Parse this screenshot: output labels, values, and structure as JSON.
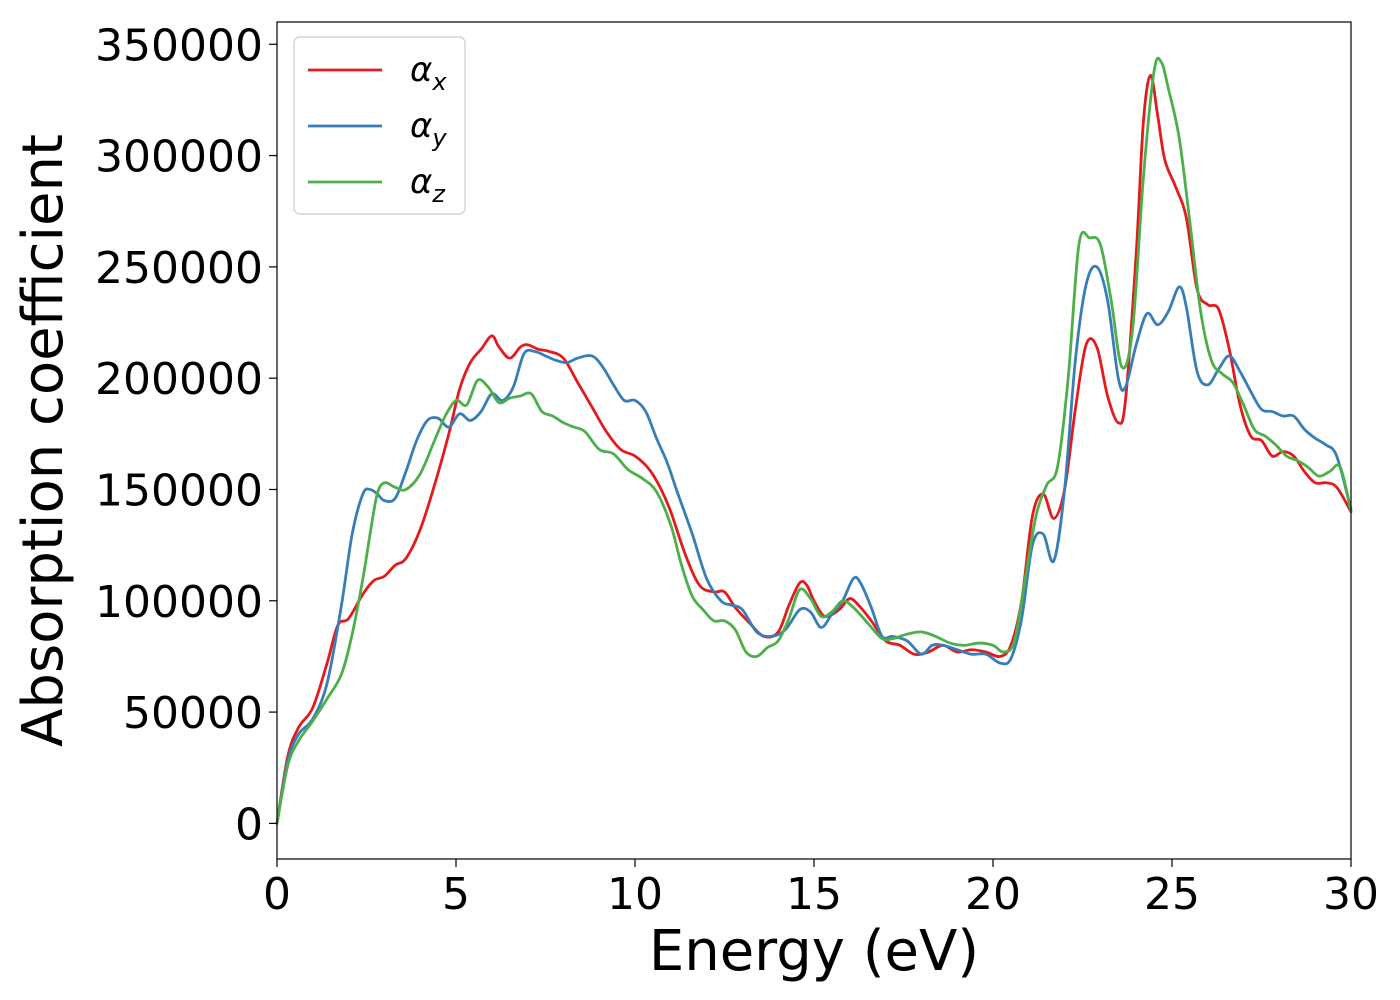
{
  "chart_data": {
    "type": "line",
    "title": "",
    "xlabel": "Energy (eV)",
    "ylabel": "Absorption coefficient",
    "xlim": [
      0,
      30
    ],
    "ylim": [
      -16000,
      360000
    ],
    "xticks": [
      0,
      5,
      10,
      15,
      20,
      25,
      30
    ],
    "xtick_labels": [
      "0",
      "5",
      "10",
      "15",
      "20",
      "25",
      "30"
    ],
    "yticks": [
      0,
      50000,
      100000,
      150000,
      200000,
      250000,
      300000,
      350000
    ],
    "ytick_labels": [
      "0",
      "50000",
      "100000",
      "150000",
      "200000",
      "250000",
      "300000",
      "350000"
    ],
    "grid": false,
    "legend_position": "top-left",
    "series": [
      {
        "name": "α",
        "subscript": "x",
        "color": "#e41a1c",
        "x": [
          0,
          0.3,
          0.6,
          1.0,
          1.4,
          1.7,
          2.0,
          2.4,
          2.7,
          3.0,
          3.3,
          3.6,
          4.0,
          4.4,
          4.8,
          5.1,
          5.4,
          5.7,
          6.0,
          6.2,
          6.5,
          6.8,
          7.0,
          7.3,
          7.6,
          8.0,
          8.4,
          8.8,
          9.2,
          9.6,
          10.0,
          10.4,
          10.7,
          11.0,
          11.4,
          11.8,
          12.2,
          12.5,
          12.8,
          13.2,
          13.6,
          14.0,
          14.3,
          14.6,
          14.8,
          15.0,
          15.3,
          15.7,
          16.0,
          16.3,
          16.6,
          17.0,
          17.4,
          17.8,
          18.2,
          18.6,
          19.0,
          19.4,
          19.8,
          20.2,
          20.5,
          20.8,
          21.1,
          21.4,
          21.7,
          22.0,
          22.3,
          22.6,
          22.9,
          23.2,
          23.5,
          23.7,
          24.0,
          24.2,
          24.4,
          24.6,
          24.8,
          25.1,
          25.4,
          25.7,
          26.0,
          26.3,
          26.6,
          26.9,
          27.2,
          27.5,
          27.8,
          28.1,
          28.4,
          28.7,
          29.0,
          29.3,
          29.6,
          30.0
        ],
        "y": [
          0,
          30000,
          43000,
          52000,
          72000,
          89000,
          92000,
          103000,
          109000,
          111000,
          116000,
          119000,
          132000,
          152000,
          175000,
          195000,
          207000,
          213000,
          219000,
          214000,
          209000,
          214000,
          215000,
          213000,
          212000,
          209000,
          198000,
          187000,
          176000,
          168000,
          165000,
          159000,
          151000,
          140000,
          121000,
          107000,
          104000,
          104000,
          97000,
          90000,
          84000,
          86000,
          98000,
          108000,
          107000,
          100000,
          93000,
          96000,
          101000,
          97000,
          91000,
          82000,
          80000,
          76000,
          77000,
          80000,
          77000,
          78000,
          77000,
          75000,
          80000,
          100000,
          138000,
          148000,
          137000,
          150000,
          186000,
          215000,
          214000,
          192000,
          180000,
          190000,
          256000,
          315000,
          336000,
          318000,
          298000,
          286000,
          272000,
          240000,
          233000,
          231000,
          213000,
          188000,
          174000,
          172000,
          165000,
          167000,
          165000,
          158000,
          153000,
          153000,
          151000,
          140000
        ]
      },
      {
        "name": "α",
        "subscript": "y",
        "color": "#377eb8",
        "x": [
          0,
          0.3,
          0.6,
          1.0,
          1.4,
          1.8,
          2.1,
          2.4,
          2.6,
          2.8,
          3.0,
          3.3,
          3.6,
          3.9,
          4.2,
          4.5,
          4.8,
          5.1,
          5.4,
          5.7,
          6.0,
          6.3,
          6.6,
          6.9,
          7.2,
          7.5,
          7.8,
          8.1,
          8.4,
          8.8,
          9.1,
          9.4,
          9.7,
          10.0,
          10.3,
          10.6,
          10.9,
          11.2,
          11.6,
          12.0,
          12.4,
          12.7,
          13.0,
          13.4,
          13.8,
          14.2,
          14.6,
          14.9,
          15.2,
          15.5,
          15.8,
          16.1,
          16.3,
          16.6,
          16.9,
          17.2,
          17.6,
          18.0,
          18.3,
          18.6,
          19.0,
          19.4,
          19.8,
          20.2,
          20.5,
          20.8,
          21.1,
          21.4,
          21.7,
          22.0,
          22.3,
          22.6,
          22.9,
          23.2,
          23.5,
          23.7,
          24.0,
          24.3,
          24.6,
          24.9,
          25.2,
          25.4,
          25.7,
          26.0,
          26.3,
          26.6,
          26.9,
          27.2,
          27.5,
          27.8,
          28.1,
          28.4,
          28.7,
          29.0,
          29.3,
          29.6,
          30.0
        ],
        "y": [
          0,
          28000,
          40000,
          47000,
          63000,
          98000,
          130000,
          148000,
          150000,
          148000,
          145000,
          146000,
          158000,
          172000,
          181000,
          182000,
          178000,
          184000,
          181000,
          185000,
          193000,
          190000,
          196000,
          211000,
          212000,
          210000,
          208000,
          207000,
          209000,
          210000,
          205000,
          197000,
          190000,
          190000,
          185000,
          173000,
          162000,
          148000,
          130000,
          110000,
          100000,
          98000,
          96000,
          86000,
          84000,
          87000,
          96000,
          95000,
          88000,
          94000,
          100000,
          110000,
          108000,
          97000,
          84000,
          84000,
          82000,
          76000,
          80000,
          80000,
          78000,
          76000,
          76000,
          72000,
          74000,
          92000,
          125000,
          130000,
          118000,
          150000,
          208000,
          242000,
          250000,
          235000,
          200000,
          196000,
          215000,
          229000,
          224000,
          230000,
          241000,
          232000,
          203000,
          197000,
          204000,
          210000,
          203000,
          194000,
          186000,
          185000,
          183000,
          183000,
          177000,
          173000,
          170000,
          165000,
          141000
        ]
      },
      {
        "name": "α",
        "subscript": "z",
        "color": "#4daf4a",
        "x": [
          0,
          0.3,
          0.6,
          1.0,
          1.4,
          1.8,
          2.1,
          2.4,
          2.6,
          2.8,
          3.0,
          3.3,
          3.6,
          4.0,
          4.4,
          4.7,
          5.0,
          5.3,
          5.6,
          5.9,
          6.2,
          6.5,
          6.8,
          7.1,
          7.4,
          7.7,
          8.0,
          8.3,
          8.6,
          9.0,
          9.4,
          9.8,
          10.2,
          10.6,
          11.0,
          11.3,
          11.6,
          11.9,
          12.2,
          12.5,
          12.8,
          13.1,
          13.4,
          13.7,
          14.0,
          14.3,
          14.6,
          14.9,
          15.2,
          15.5,
          15.8,
          16.1,
          16.5,
          16.9,
          17.2,
          17.6,
          18.0,
          18.4,
          18.8,
          19.2,
          19.6,
          20.0,
          20.3,
          20.6,
          20.9,
          21.2,
          21.5,
          21.8,
          22.1,
          22.4,
          22.7,
          23.0,
          23.3,
          23.6,
          23.9,
          24.2,
          24.5,
          24.7,
          24.9,
          25.2,
          25.5,
          25.8,
          26.1,
          26.4,
          26.7,
          27.0,
          27.3,
          27.6,
          27.9,
          28.2,
          28.5,
          28.8,
          29.1,
          29.4,
          29.7,
          30.0
        ],
        "y": [
          0,
          26000,
          37000,
          46000,
          56000,
          67000,
          85000,
          110000,
          130000,
          148000,
          153000,
          151000,
          150000,
          157000,
          172000,
          183000,
          190000,
          188000,
          199000,
          196000,
          189000,
          191000,
          192000,
          193000,
          185000,
          183000,
          180000,
          178000,
          176000,
          168000,
          166000,
          159000,
          155000,
          149000,
          134000,
          116000,
          102000,
          96000,
          91000,
          91000,
          87000,
          77000,
          75000,
          79000,
          82000,
          92000,
          105000,
          101000,
          93000,
          95000,
          100000,
          97000,
          90000,
          83000,
          83000,
          85000,
          86000,
          84000,
          81000,
          80000,
          81000,
          80000,
          77000,
          82000,
          110000,
          138000,
          152000,
          160000,
          200000,
          260000,
          263000,
          260000,
          235000,
          205000,
          222000,
          290000,
          338000,
          342000,
          330000,
          308000,
          270000,
          230000,
          208000,
          202000,
          198000,
          188000,
          177000,
          174000,
          170000,
          165000,
          163000,
          160000,
          156000,
          158000,
          160000,
          140000
        ]
      }
    ]
  }
}
